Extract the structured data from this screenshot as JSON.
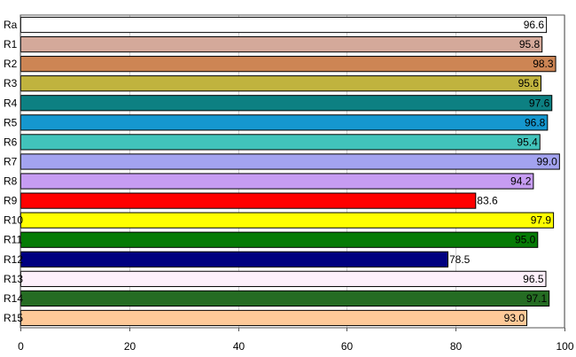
{
  "chart_data": {
    "type": "bar",
    "orientation": "horizontal",
    "categories": [
      "Ra",
      "R1",
      "R2",
      "R3",
      "R4",
      "R5",
      "R6",
      "R7",
      "R8",
      "R9",
      "R10",
      "R11",
      "R12",
      "R13",
      "R14",
      "R15"
    ],
    "values": [
      96.6,
      95.8,
      98.3,
      95.6,
      97.6,
      96.8,
      95.4,
      99.0,
      94.2,
      83.6,
      97.9,
      95.0,
      78.5,
      96.5,
      97.1,
      93.0
    ],
    "value_labels": [
      "96.6",
      "95.8",
      "98.3",
      "95.6",
      "97.6",
      "96.8",
      "95.4",
      "99.0",
      "94.2",
      "83.6",
      "97.9",
      "95.0",
      "78.5",
      "96.5",
      "97.1",
      "93.0"
    ],
    "colors": [
      "#ffffff",
      "#d4a99a",
      "#cd8554",
      "#c0b33e",
      "#0d8082",
      "#1597cf",
      "#41c3bb",
      "#a3a3f0",
      "#c69cf2",
      "#ff0000",
      "#ffff00",
      "#067b06",
      "#000080",
      "#fdf0fb",
      "#256c23",
      "#fec998"
    ],
    "xlim": [
      0,
      100
    ],
    "xticks": [
      0,
      20,
      40,
      60,
      80,
      100
    ],
    "title": "",
    "xlabel": "",
    "ylabel": "",
    "grid": "vertical",
    "legend": "none"
  }
}
